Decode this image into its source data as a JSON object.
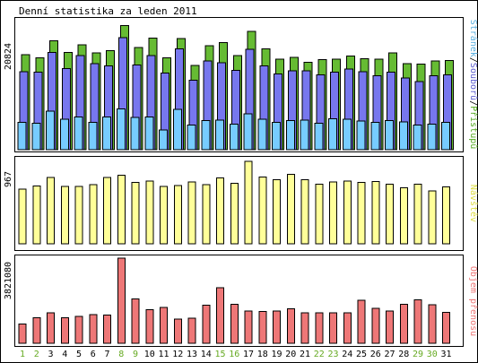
{
  "chart_data": {
    "type": "bar",
    "title": "Denní statistika za leden 2011",
    "categories": [
      "1",
      "2",
      "3",
      "4",
      "5",
      "6",
      "7",
      "8",
      "9",
      "10",
      "11",
      "12",
      "13",
      "14",
      "15",
      "16",
      "17",
      "18",
      "19",
      "20",
      "21",
      "22",
      "23",
      "24",
      "25",
      "26",
      "27",
      "28",
      "29",
      "30",
      "31"
    ],
    "weekend_days": [
      "1",
      "2",
      "8",
      "9",
      "15",
      "16",
      "22",
      "23",
      "29",
      "30"
    ],
    "colors": {
      "pristupu": "#66bb33",
      "souboru": "#7777ee",
      "stranek": "#77ccff",
      "navstev": "#ffff99",
      "objem": "#ee7777",
      "weekday_label": "#000000",
      "weekend_label": "#66aa22"
    },
    "panels": [
      {
        "name": "hits",
        "ymax_label": "20824",
        "ymax": 20824,
        "side_label_parts": [
          {
            "text": "Stránek",
            "color": "#5ab0e0"
          },
          {
            "text": "/",
            "color": "#000000"
          },
          {
            "text": "Souborů",
            "color": "#6060d0"
          },
          {
            "text": "/",
            "color": "#000000"
          },
          {
            "text": "Přístupů",
            "color": "#55aa22"
          }
        ],
        "series": [
          {
            "name": "Přístupů",
            "color_key": "pristupu",
            "values": [
              15300,
              14800,
              17600,
              15700,
              16900,
              15600,
              16000,
              20000,
              16500,
              18000,
              14800,
              17900,
              13600,
              16800,
              17300,
              15200,
              19100,
              16300,
              14600,
              14900,
              14100,
              14500,
              14600,
              15100,
              14700,
              14600,
              15600,
              13900,
              13800,
              14300,
              14400
            ]
          },
          {
            "name": "Souborů",
            "color_key": "souboru",
            "values": [
              12600,
              12500,
              15700,
              13100,
              15200,
              13900,
              13500,
              18100,
              13700,
              15200,
              12400,
              16300,
              11200,
              14300,
              14000,
              12800,
              16200,
              13500,
              12200,
              12700,
              12700,
              12100,
              12500,
              13000,
              12600,
              11900,
              12500,
              11600,
              11000,
              11900,
              12100
            ]
          },
          {
            "name": "Stránek",
            "color_key": "stranek",
            "values": [
              4400,
              4300,
              6200,
              4900,
              5300,
              4400,
              5300,
              6600,
              5200,
              5300,
              3200,
              6500,
              4000,
              4700,
              4800,
              4100,
              5800,
              4900,
              4400,
              4700,
              4800,
              4300,
              5000,
              4900,
              4600,
              4400,
              4700,
              4500,
              4000,
              4100,
              4400
            ]
          }
        ]
      },
      {
        "name": "visits",
        "ymax_label": "967",
        "ymax": 967,
        "side_label_parts": [
          {
            "text": "Návštěv",
            "color": "#dddd44"
          }
        ],
        "series": [
          {
            "name": "Návštěv",
            "color_key": "navstev",
            "values": [
              643,
              680,
              779,
              673,
              674,
              695,
              776,
              806,
              718,
              735,
              672,
              681,
              723,
              693,
              770,
              712,
              967,
              785,
              749,
              817,
              750,
              700,
              726,
              736,
              721,
              733,
              697,
              656,
              701,
              619,
              666
            ]
          }
        ]
      },
      {
        "name": "volume",
        "ymax_label": "3821080",
        "ymax": 3821080,
        "side_label_parts": [
          {
            "text": "Objem přenosu",
            "color": "#ee7777"
          }
        ],
        "series": [
          {
            "name": "Objem přenosu",
            "color_key": "objem",
            "values": [
              870000,
              1150000,
              1360000,
              1150000,
              1210000,
              1280000,
              1260000,
              3821080,
              1990000,
              1500000,
              1600000,
              1080000,
              1120000,
              1700000,
              2500000,
              1750000,
              1450000,
              1420000,
              1450000,
              1550000,
              1360000,
              1360000,
              1360000,
              1360000,
              1930000,
              1570000,
              1440000,
              1750000,
              1950000,
              1720000,
              1380000
            ]
          }
        ]
      }
    ]
  }
}
